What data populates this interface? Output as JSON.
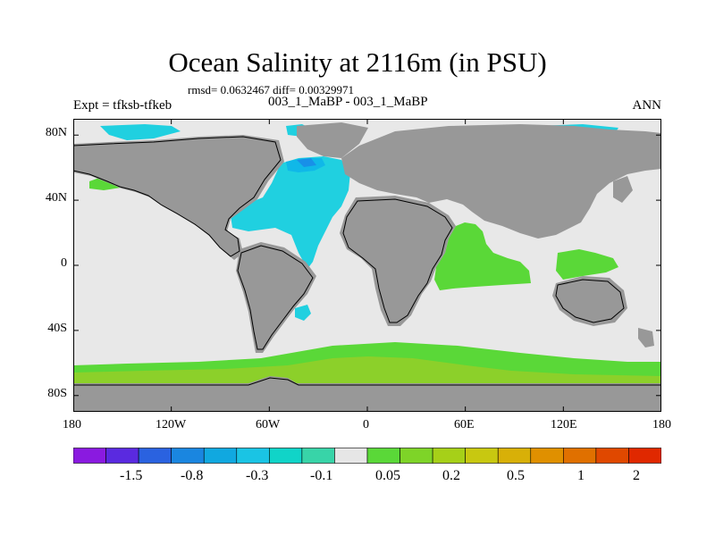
{
  "header": {
    "title": "Ocean Salinity at 2116m (in PSU)",
    "stats": "rmsd= 0.0632467 diff= 0.00329971",
    "experiment": "Expt = tfksb-tfkeb",
    "cases": "003_1_MaBP - 003_1_MaBP",
    "season": "ANN"
  },
  "axes": {
    "lon_labels": [
      "180",
      "120W",
      "60W",
      "0",
      "60E",
      "120E",
      "180"
    ],
    "lat_labels": [
      "80N",
      "40N",
      "0",
      "40S",
      "80S"
    ],
    "lon_values": [
      -180,
      -120,
      -60,
      0,
      60,
      120,
      180
    ],
    "lat_values": [
      80,
      40,
      0,
      -40,
      -80
    ]
  },
  "colorbar": {
    "labels": [
      "-1.5",
      "-0.8",
      "-0.3",
      "-0.1",
      "0.05",
      "0.2",
      "0.5",
      "1",
      "2"
    ],
    "colors": [
      "#8a1ae0",
      "#5a2ae0",
      "#2a62e0",
      "#1a86e0",
      "#10a8e0",
      "#1ac4e4",
      "#10d4c8",
      "#38d4a8",
      "#e6e6e6",
      "#5ad838",
      "#7ed428",
      "#a6d018",
      "#c8c810",
      "#d8b008",
      "#e09000",
      "#e07000",
      "#e04800",
      "#e02800"
    ]
  },
  "map_colors": {
    "land": "#989898",
    "ocean_neutral": "#e8e8e8",
    "fresh_light": "#20d0e0",
    "fresh_mid": "#10b8e8",
    "fresh_dark": "#1890e8",
    "salty_light": "#5ad838",
    "salty_mid": "#8cd02a",
    "salty_dark": "#a8cc18"
  }
}
